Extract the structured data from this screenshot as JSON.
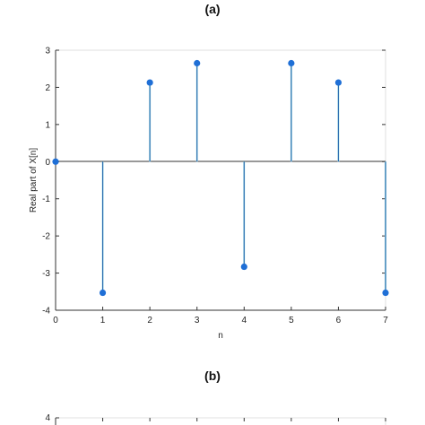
{
  "chart_data": [
    {
      "type": "stem",
      "title": "(a)",
      "xlabel": "n",
      "ylabel": "Real part of X[n]",
      "xlim": [
        0,
        7
      ],
      "ylim": [
        -4,
        3
      ],
      "x_ticks": [
        "0",
        "1",
        "2",
        "3",
        "4",
        "5",
        "6",
        "7"
      ],
      "y_ticks": [
        "3",
        "2",
        "1",
        "0",
        "-1",
        "-2",
        "-3",
        "-4"
      ],
      "x": [
        0,
        1,
        2,
        3,
        4,
        5,
        6,
        7
      ],
      "values": [
        0,
        -3.53,
        2.13,
        2.65,
        -2.83,
        2.65,
        2.13,
        -3.53
      ],
      "grid": false,
      "colors": {
        "stem": "#2b6cb0",
        "marker": "#1f6fd6",
        "axis": "#333333",
        "faint_stem": "#bfeeee"
      }
    },
    {
      "type": "stem",
      "title": "(b)",
      "y_ticks": [
        "4"
      ],
      "partial": true
    }
  ]
}
